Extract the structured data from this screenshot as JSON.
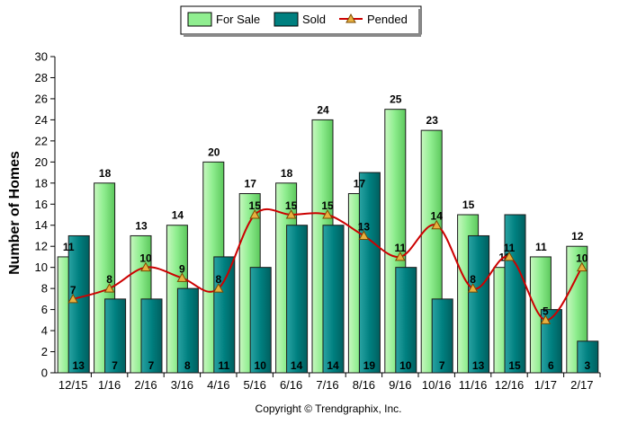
{
  "chart_data": {
    "type": "bar",
    "categories": [
      "12/15",
      "1/16",
      "2/16",
      "3/16",
      "4/16",
      "5/16",
      "6/16",
      "7/16",
      "8/16",
      "9/16",
      "10/16",
      "11/16",
      "12/16",
      "1/17",
      "2/17"
    ],
    "series": [
      {
        "name": "For Sale",
        "type": "bar",
        "color": "#90ee90",
        "values": [
          11,
          18,
          13,
          14,
          20,
          17,
          18,
          24,
          17,
          25,
          23,
          15,
          10,
          11,
          12
        ]
      },
      {
        "name": "Sold",
        "type": "bar",
        "color": "#008080",
        "values": [
          13,
          7,
          7,
          8,
          11,
          10,
          14,
          14,
          19,
          10,
          7,
          13,
          15,
          6,
          3
        ]
      },
      {
        "name": "Pended",
        "type": "line",
        "color": "#cc0000",
        "values": [
          7,
          8,
          10,
          9,
          8,
          15,
          15,
          15,
          13,
          11,
          14,
          8,
          11,
          5,
          10
        ]
      }
    ],
    "ylabel": "Number of Homes",
    "xlabel": "",
    "ylim": [
      0,
      30
    ],
    "yticks": [
      0,
      2,
      4,
      6,
      8,
      10,
      12,
      14,
      16,
      18,
      20,
      22,
      24,
      26,
      28,
      30
    ],
    "grid": false,
    "legend_position": "top-center"
  },
  "footer": {
    "copyright": "Copyright © Trendgraphix, Inc."
  }
}
